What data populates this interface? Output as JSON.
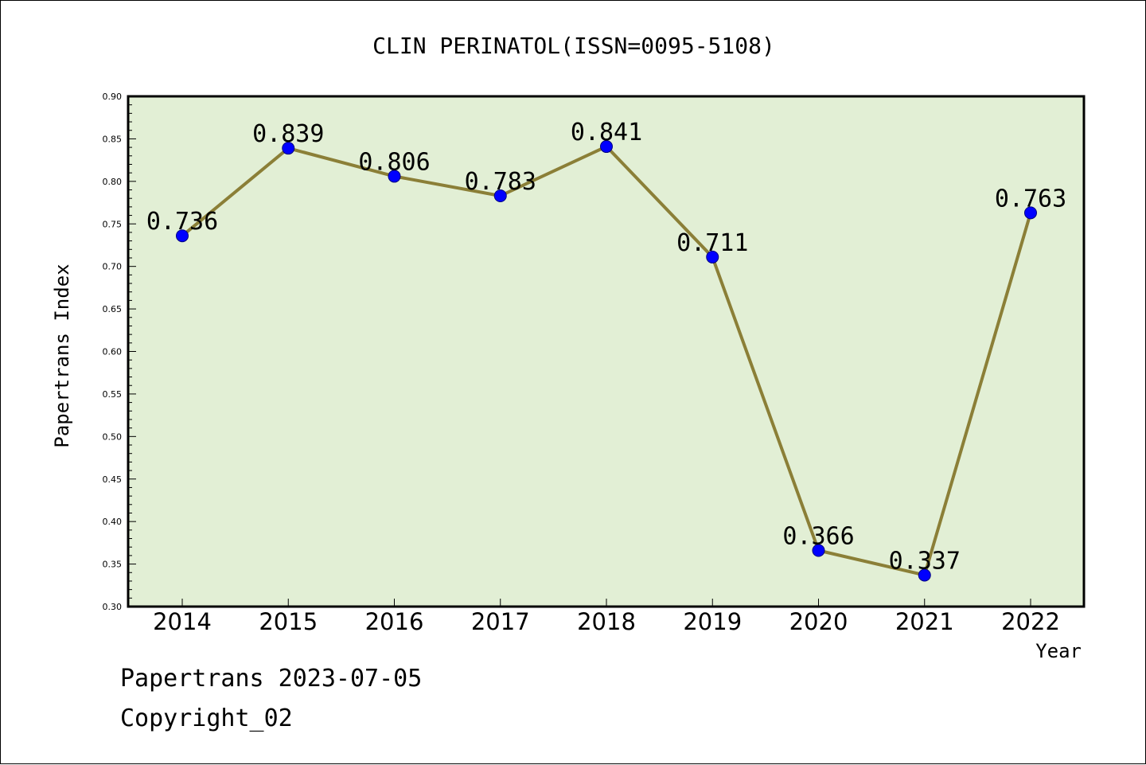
{
  "chart_data": {
    "type": "line",
    "title": "CLIN PERINATOL(ISSN=0095-5108)",
    "xlabel": "Year",
    "ylabel": "Papertrans Index",
    "categories": [
      "2014",
      "2015",
      "2016",
      "2017",
      "2018",
      "2019",
      "2020",
      "2021",
      "2022"
    ],
    "values": [
      0.736,
      0.839,
      0.806,
      0.783,
      0.841,
      0.711,
      0.366,
      0.337,
      0.763
    ],
    "data_labels": [
      "0.736",
      "0.839",
      "0.806",
      "0.783",
      "0.841",
      "0.711",
      "0.366",
      "0.337",
      "0.763"
    ],
    "ylim": [
      0.3,
      0.9
    ],
    "y_ticks": [
      "0.30",
      "0.35",
      "0.40",
      "0.45",
      "0.50",
      "0.55",
      "0.60",
      "0.65",
      "0.70",
      "0.75",
      "0.80",
      "0.85",
      "0.90"
    ],
    "grid": false,
    "colors": {
      "plot_background": "#e2efd5",
      "line": "#8b7f37",
      "marker": "#0000ff"
    }
  },
  "footer": {
    "date_line": "Papertrans 2023-07-05",
    "copyright": "Copyright_02"
  }
}
